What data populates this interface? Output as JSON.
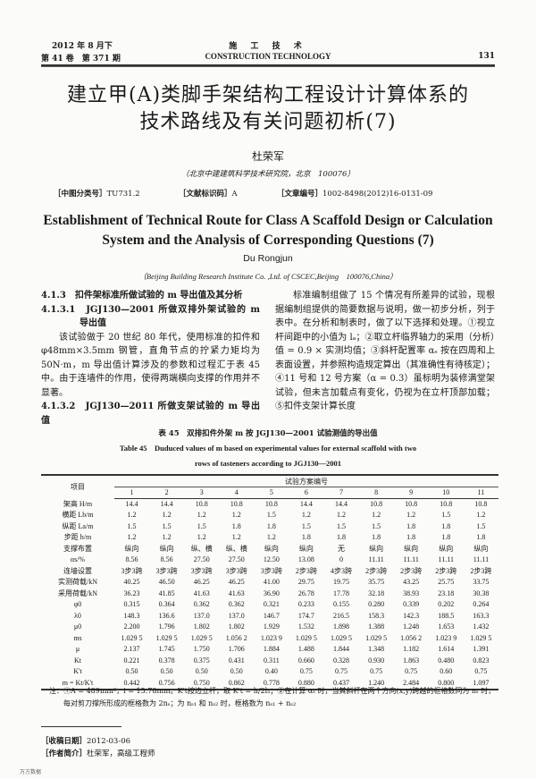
{
  "header": {
    "date": "2012 年 8 月下",
    "volume": "第 41 卷　第 371 期",
    "journal_cn": "施 工 技 术",
    "journal_en": "CONSTRUCTION TECHNOLOGY",
    "page": "131"
  },
  "title_cn": [
    "建立甲(A)类脚手架结构工程设计计算体系的",
    "技术路线及有关问题初析(7)"
  ],
  "author_cn": "杜荣军",
  "affil_cn": "（北京中建建筑科学技术研究院，北京　100076）",
  "classification": [
    {
      "label": "［中图分类号］",
      "value": "TU731.2"
    },
    {
      "label": "［文献标识码］",
      "value": "A"
    },
    {
      "label": "［文章编号］",
      "value": "1002-8498(2012)16-0131-09"
    }
  ],
  "title_en": [
    "Establishment of Technical Route for Class A Scaffold Design or Calculation",
    "System and the Analysis of Corresponding Questions (7)"
  ],
  "author_en": "Du Rongjun",
  "affil_en": "（Beijing Building Research Institute Co. ,Ltd. of CSCEC,Beijing　100076,China）",
  "left_col": {
    "h1": "4.1.3　扣件架标准所做试验的 m 导出值及其分析",
    "h2": "4.1.3.1　JGJ130—2001 所做双排外架试验的 m 导出值",
    "p1": "该试验做于 20 世纪 80 年代，使用标准的扣件和 φ48mm×3.5mm 钢管，直角节点的拧紧力矩均为 50N·m，m 导出值计算涉及的参数和过程汇于表 45 中。由于连墙件的作用，使得两端横向支撑的作用并不显著。",
    "h3": "4.1.3.2　JGJ130—2011 所做支架试验的 m 导出值"
  },
  "right_col": {
    "p1": "标准编制组做了 15 个情况有所差异的试验，现根据编制组提供的简要数据与说明，做一初步分析，列于表中。在分析和制表时，做了以下选择和处理。①视立杆间距中的小值为 lₐ；②取立杆临界轴力的采用（分析）值 = 0.9 × 实测均值；③斜杆配置率 αₛ 按在四周和上表面设置，并参照构造规定算出（其准确性有待核定）；④11 号和 12 号方案（α = 0.3）虽标明为装修满堂架试验，但未言加载点有变化，仍视为在立杆顶部加载；⑤扣件支架计算长度"
  },
  "table": {
    "caption_cn": "表 45　双排扣件外架 m 按 JGJ130—2001 试验测值的导出值",
    "caption_en": [
      "Table 45　Duduced values of m based on experimental values for external scaffold with two",
      "rows of tasteners according to JGJ130—2001"
    ],
    "item_header": "项目",
    "group_header": "试验方案编号",
    "columns": [
      "1",
      "2",
      "3",
      "4",
      "5",
      "6",
      "7",
      "8",
      "9",
      "10",
      "11"
    ],
    "rows": [
      {
        "label": "架高 H/m",
        "values": [
          "14.4",
          "14.4",
          "10.8",
          "10.8",
          "10.8",
          "14.4",
          "14.4",
          "10.8",
          "10.8",
          "10.8",
          "10.8"
        ]
      },
      {
        "label": "横距 Lb/m",
        "values": [
          "1.2",
          "1.2",
          "1.2",
          "1.2",
          "1.5",
          "1.2",
          "1.2",
          "1.2",
          "1.2",
          "1.5",
          "1.2"
        ]
      },
      {
        "label": "纵距 La/m",
        "values": [
          "1.5",
          "1.5",
          "1.5",
          "1.8",
          "1.8",
          "1.5",
          "1.5",
          "1.5",
          "1.8",
          "1.8",
          "1.5"
        ]
      },
      {
        "label": "步距 h/m",
        "values": [
          "1.2",
          "1.2",
          "1.2",
          "1.2",
          "1.2",
          "1.8",
          "1.8",
          "1.8",
          "1.8",
          "1.8",
          "1.8"
        ]
      },
      {
        "label": "支撑布置",
        "values": [
          "纵向",
          "纵向",
          "纵、横",
          "纵、横",
          "纵向",
          "纵向",
          "无",
          "纵向",
          "纵向",
          "纵向",
          "纵向"
        ]
      },
      {
        "label": "αs/%",
        "values": [
          "8.56",
          "8.56",
          "27.50",
          "27.50",
          "12.50",
          "13.08",
          "0",
          "11.11",
          "11.11",
          "11.11",
          "11.11"
        ]
      },
      {
        "label": "连墙设置",
        "values": [
          "3步3跨",
          "3步3跨",
          "3步3跨",
          "3步3跨",
          "3步3跨",
          "2步3跨",
          "4步3跨",
          "2步3跨",
          "2步3跨",
          "2步3跨",
          "2步3跨"
        ]
      },
      {
        "label": "实测荷载/kN",
        "values": [
          "40.25",
          "46.50",
          "46.25",
          "46.25",
          "41.00",
          "29.75",
          "19.75",
          "35.75",
          "43.25",
          "25.75",
          "33.75"
        ]
      },
      {
        "label": "采用荷载/kN",
        "values": [
          "36.23",
          "41.85",
          "41.63",
          "41.63",
          "36.90",
          "26.78",
          "17.78",
          "32.18",
          "38.93",
          "23.18",
          "30.38"
        ]
      },
      {
        "label": "φ0",
        "values": [
          "0.315",
          "0.364",
          "0.362",
          "0.362",
          "0.321",
          "0.233",
          "0.155",
          "0.280",
          "0.339",
          "0.202",
          "0.264"
        ]
      },
      {
        "label": "λ0",
        "values": [
          "148.3",
          "136.6",
          "137.0",
          "137.0",
          "146.7",
          "174.7",
          "216.5",
          "158.3",
          "142.3",
          "188.5",
          "163.3"
        ]
      },
      {
        "label": "μ0",
        "values": [
          "2.200",
          "1.796",
          "1.802",
          "1.802",
          "1.929",
          "1.532",
          "1.898",
          "1.388",
          "1.248",
          "1.653",
          "1.432"
        ]
      },
      {
        "label": "ms",
        "values": [
          "1.029 5",
          "1.029 5",
          "1.029 5",
          "1.056 2",
          "1.023 9",
          "1.029 5",
          "1.029 5",
          "1.029 5",
          "1.056 2",
          "1.023 9",
          "1.029 5"
        ]
      },
      {
        "label": "μ",
        "values": [
          "2.137",
          "1.745",
          "1.750",
          "1.706",
          "1.884",
          "1.488",
          "1.844",
          "1.348",
          "1.182",
          "1.614",
          "1.391"
        ]
      },
      {
        "label": "Kt",
        "values": [
          "0.221",
          "0.378",
          "0.375",
          "0.431",
          "0.311",
          "0.660",
          "0.328",
          "0.930",
          "1.863",
          "0.480",
          "0.823"
        ]
      },
      {
        "label": "K't",
        "values": [
          "0.50",
          "0.50",
          "0.50",
          "0.50",
          "0.40",
          "0.75",
          "0.75",
          "0.75",
          "0.75",
          "0.60",
          "0.75"
        ]
      },
      {
        "label": "m = Kt/K't",
        "values": [
          "0.442",
          "0.756",
          "0.750",
          "0.862",
          "0.778",
          "0.880",
          "0.437",
          "1.240",
          "2.484",
          "0.800",
          "1.097"
        ]
      }
    ],
    "note": "注：①A = 489mm²，i = 15.78mm。K't按边立杆，取 K't = h/2lₐ；②在计算 αₛ 时，当其斜杆在两个方向(x,y)跨越的框格数同为 nₛ 时，每对剪刀撑所形成的框格数为 2nₛ；为 nₛ₁ 和 nₛ₂ 时，框格数为 nₛ₁ + nₛ₂"
  },
  "footnotes": {
    "received_label": "［收稿日期］",
    "received": "2012-03-06",
    "author_label": "［作者简介］",
    "author": "杜荣军，高级工程师"
  },
  "watermark": "万方数据"
}
